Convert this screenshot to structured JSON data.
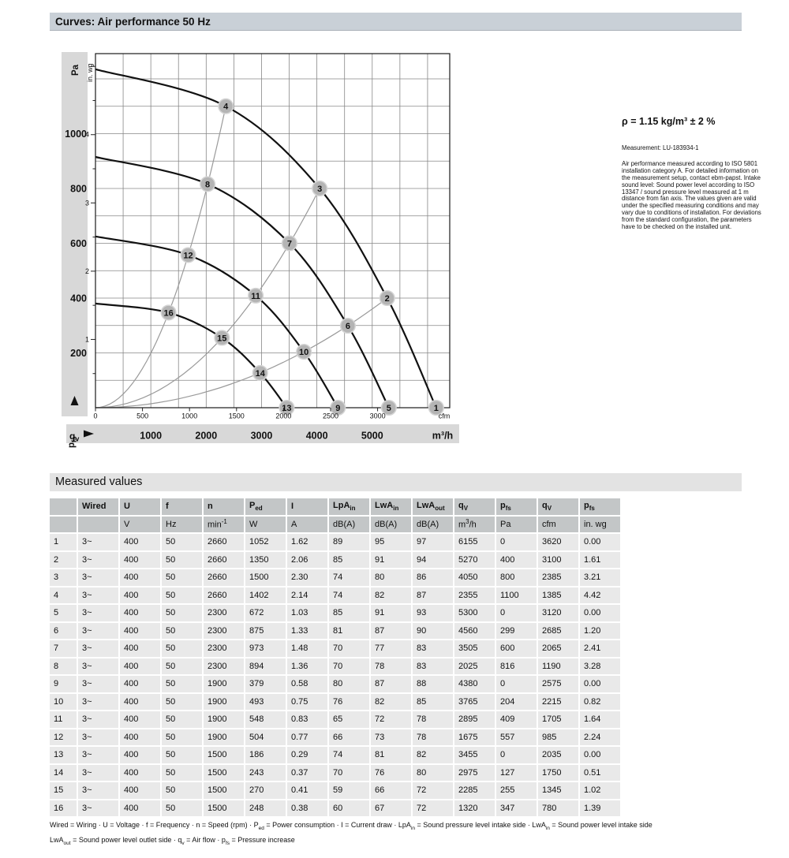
{
  "header": {
    "title": "Curves: Air performance 50 Hz"
  },
  "style": {
    "title_bar_bg": "#c9d0d7",
    "section_bar_bg": "#e3e3e3",
    "band_bg": "#d8d8d8",
    "grid_color": "#878787",
    "frame_color": "#1a1a1a",
    "curve_color": "#111111",
    "system_color": "#9a9a9a",
    "marker_fill": "#b4b4b4",
    "marker_ring": "#d4d4d4",
    "marker_text": "#ffffff",
    "th_bg": "#c3c6c7",
    "td_bg": "#e9e9e9"
  },
  "side_note": {
    "density": "ρ = 1.15 kg/m³ ± 2 %",
    "measurement": "Measurement: LU-183934-1",
    "description": "Air performance measured according to ISO 5801 installation category A. For detailed information on the measurement setup, contact ebm-papst. Intake sound level: Sound power level according to ISO 13347 / sound pressure level measured at 1 m distance from fan axis. The values given are valid under the specified measuring conditions and may vary due to conditions of installation. For deviations from the standard configuration, the parameters have to be checked on the installed unit."
  },
  "chart": {
    "x_axis": {
      "symbol": "q",
      "symbol_sub": "v",
      "unit_plot": "cfm",
      "unit_band": "m³/h",
      "cfm_ticks": [
        0,
        500,
        1000,
        1500,
        2000,
        2500,
        3000
      ],
      "m3h_ticks": [
        1000,
        2000,
        3000,
        4000,
        5000
      ],
      "m3h_per_cfm": 1.699,
      "grid_step_m3h": 500
    },
    "y_axis": {
      "symbol": "p",
      "symbol_sub": "fs",
      "unit_primary": "Pa",
      "unit_secondary": "in. wg",
      "pa_ticks": [
        200,
        400,
        600,
        800,
        1000
      ],
      "inwg_ticks": [
        1,
        2,
        3,
        4
      ],
      "inwg_minor_step": 0.5,
      "inwg_minor_max": 5,
      "pa_per_inwg": 249.089,
      "grid_step_pa": 100
    }
  },
  "chart_data": {
    "type": "line",
    "title": "Curves: Air performance 50 Hz",
    "xlabel": "qv (m³/h)",
    "ylabel": "pfs (Pa)",
    "xlim": [
      0,
      6400
    ],
    "ylim": [
      0,
      1292
    ],
    "grid": "on",
    "legend_position": "none",
    "series": [
      {
        "name": "fan-curve-2660-rpm",
        "points": [
          [
            0,
            1235
          ],
          [
            2355,
            1100
          ],
          [
            4050,
            800
          ],
          [
            5270,
            400
          ],
          [
            6155,
            0
          ]
        ],
        "point_labels": [
          "",
          "4",
          "3",
          "2",
          "1"
        ]
      },
      {
        "name": "fan-curve-2300-rpm",
        "points": [
          [
            0,
            915
          ],
          [
            2025,
            816
          ],
          [
            3505,
            600
          ],
          [
            4560,
            299
          ],
          [
            5300,
            0
          ]
        ],
        "point_labels": [
          "",
          "8",
          "7",
          "6",
          "5"
        ]
      },
      {
        "name": "fan-curve-1900-rpm",
        "points": [
          [
            0,
            625
          ],
          [
            1675,
            557
          ],
          [
            2895,
            409
          ],
          [
            3765,
            204
          ],
          [
            4380,
            0
          ]
        ],
        "point_labels": [
          "",
          "12",
          "11",
          "10",
          "9"
        ]
      },
      {
        "name": "fan-curve-1500-rpm",
        "points": [
          [
            0,
            380
          ],
          [
            1320,
            347
          ],
          [
            2285,
            255
          ],
          [
            2975,
            127
          ],
          [
            3455,
            0
          ]
        ],
        "point_labels": [
          "",
          "16",
          "15",
          "14",
          "13"
        ]
      }
    ],
    "system_curves": [
      {
        "name": "system-line-a",
        "points": [
          [
            0,
            0
          ],
          [
            1320,
            347
          ],
          [
            1675,
            557
          ],
          [
            2025,
            816
          ],
          [
            2355,
            1100
          ]
        ]
      },
      {
        "name": "system-line-b",
        "points": [
          [
            0,
            0
          ],
          [
            2285,
            255
          ],
          [
            2895,
            409
          ],
          [
            3505,
            600
          ],
          [
            4050,
            800
          ]
        ]
      },
      {
        "name": "system-line-c",
        "points": [
          [
            0,
            0
          ],
          [
            2975,
            127
          ],
          [
            3765,
            204
          ],
          [
            4560,
            299
          ],
          [
            5270,
            400
          ]
        ]
      }
    ]
  },
  "table": {
    "title": "Measured values",
    "columns": [
      {
        "label": [],
        "unit": []
      },
      {
        "label": [
          {
            "t": "Wired"
          }
        ],
        "unit": []
      },
      {
        "label": [
          {
            "t": "U"
          }
        ],
        "unit": [
          {
            "t": "V"
          }
        ]
      },
      {
        "label": [
          {
            "t": "f"
          }
        ],
        "unit": [
          {
            "t": "Hz"
          }
        ]
      },
      {
        "label": [
          {
            "t": "n"
          }
        ],
        "unit": [
          {
            "t": "min"
          },
          {
            "p": "-1"
          }
        ]
      },
      {
        "label": [
          {
            "t": "P"
          },
          {
            "s": "ed"
          }
        ],
        "unit": [
          {
            "t": "W"
          }
        ]
      },
      {
        "label": [
          {
            "t": "I"
          }
        ],
        "unit": [
          {
            "t": "A"
          }
        ]
      },
      {
        "label": [
          {
            "t": "LpA"
          },
          {
            "s": "in"
          }
        ],
        "unit": [
          {
            "t": "dB(A)"
          }
        ]
      },
      {
        "label": [
          {
            "t": "LwA"
          },
          {
            "s": "in"
          }
        ],
        "unit": [
          {
            "t": "dB(A)"
          }
        ]
      },
      {
        "label": [
          {
            "t": "LwA"
          },
          {
            "s": "out"
          }
        ],
        "unit": [
          {
            "t": "m"
          },
          {
            "x": "dBA"
          }
        ]
      },
      {
        "label": [
          {
            "t": "q"
          },
          {
            "s": "V"
          }
        ],
        "unit": [
          {
            "t": "m"
          },
          {
            "p": "3"
          },
          {
            "t": "/h"
          }
        ]
      },
      {
        "label": [
          {
            "t": "p"
          },
          {
            "s": "fs"
          }
        ],
        "unit": [
          {
            "t": "Pa"
          }
        ]
      },
      {
        "label": [
          {
            "t": "q"
          },
          {
            "s": "V"
          }
        ],
        "unit": [
          {
            "t": "cfm"
          }
        ]
      },
      {
        "label": [
          {
            "t": "p"
          },
          {
            "s": "fs"
          }
        ],
        "unit": [
          {
            "t": "in. wg"
          }
        ]
      }
    ],
    "unit_fix": {
      "col9": [
        {
          "t": "dB(A)"
        }
      ]
    },
    "rows": [
      [
        "1",
        "3~",
        "400",
        "50",
        "2660",
        "1052",
        "1.62",
        "89",
        "95",
        "97",
        "6155",
        "0",
        "3620",
        "0.00"
      ],
      [
        "2",
        "3~",
        "400",
        "50",
        "2660",
        "1350",
        "2.06",
        "85",
        "91",
        "94",
        "5270",
        "400",
        "3100",
        "1.61"
      ],
      [
        "3",
        "3~",
        "400",
        "50",
        "2660",
        "1500",
        "2.30",
        "74",
        "80",
        "86",
        "4050",
        "800",
        "2385",
        "3.21"
      ],
      [
        "4",
        "3~",
        "400",
        "50",
        "2660",
        "1402",
        "2.14",
        "74",
        "82",
        "87",
        "2355",
        "1100",
        "1385",
        "4.42"
      ],
      [
        "5",
        "3~",
        "400",
        "50",
        "2300",
        "672",
        "1.03",
        "85",
        "91",
        "93",
        "5300",
        "0",
        "3120",
        "0.00"
      ],
      [
        "6",
        "3~",
        "400",
        "50",
        "2300",
        "875",
        "1.33",
        "81",
        "87",
        "90",
        "4560",
        "299",
        "2685",
        "1.20"
      ],
      [
        "7",
        "3~",
        "400",
        "50",
        "2300",
        "973",
        "1.48",
        "70",
        "77",
        "83",
        "3505",
        "600",
        "2065",
        "2.41"
      ],
      [
        "8",
        "3~",
        "400",
        "50",
        "2300",
        "894",
        "1.36",
        "70",
        "78",
        "83",
        "2025",
        "816",
        "1190",
        "3.28"
      ],
      [
        "9",
        "3~",
        "400",
        "50",
        "1900",
        "379",
        "0.58",
        "80",
        "87",
        "88",
        "4380",
        "0",
        "2575",
        "0.00"
      ],
      [
        "10",
        "3~",
        "400",
        "50",
        "1900",
        "493",
        "0.75",
        "76",
        "82",
        "85",
        "3765",
        "204",
        "2215",
        "0.82"
      ],
      [
        "11",
        "3~",
        "400",
        "50",
        "1900",
        "548",
        "0.83",
        "65",
        "72",
        "78",
        "2895",
        "409",
        "1705",
        "1.64"
      ],
      [
        "12",
        "3~",
        "400",
        "50",
        "1900",
        "504",
        "0.77",
        "66",
        "73",
        "78",
        "1675",
        "557",
        "985",
        "2.24"
      ],
      [
        "13",
        "3~",
        "400",
        "50",
        "1500",
        "186",
        "0.29",
        "74",
        "81",
        "82",
        "3455",
        "0",
        "2035",
        "0.00"
      ],
      [
        "14",
        "3~",
        "400",
        "50",
        "1500",
        "243",
        "0.37",
        "70",
        "76",
        "80",
        "2975",
        "127",
        "1750",
        "0.51"
      ],
      [
        "15",
        "3~",
        "400",
        "50",
        "1500",
        "270",
        "0.41",
        "59",
        "66",
        "72",
        "2285",
        "255",
        "1345",
        "1.02"
      ],
      [
        "16",
        "3~",
        "400",
        "50",
        "1500",
        "248",
        "0.38",
        "60",
        "67",
        "72",
        "1320",
        "347",
        "780",
        "1.39"
      ]
    ]
  },
  "legend": {
    "line1": [
      {
        "t": "Wired = Wiring · U = Voltage · f = Frequency · n = Speed (rpm) · P"
      },
      {
        "s": "ed"
      },
      {
        "t": " = Power consumption · I = Current draw · LpA"
      },
      {
        "s": "in"
      },
      {
        "t": " = Sound pressure level intake side · LwA"
      },
      {
        "s": "in"
      },
      {
        "t": " = Sound power level intake side"
      }
    ],
    "line2": [
      {
        "t": "LwA"
      },
      {
        "s": "out"
      },
      {
        "t": " = Sound power level outlet side · q"
      },
      {
        "s": "v"
      },
      {
        "t": " = Air flow · p"
      },
      {
        "s": "fs"
      },
      {
        "t": " = Pressure increase"
      }
    ]
  }
}
